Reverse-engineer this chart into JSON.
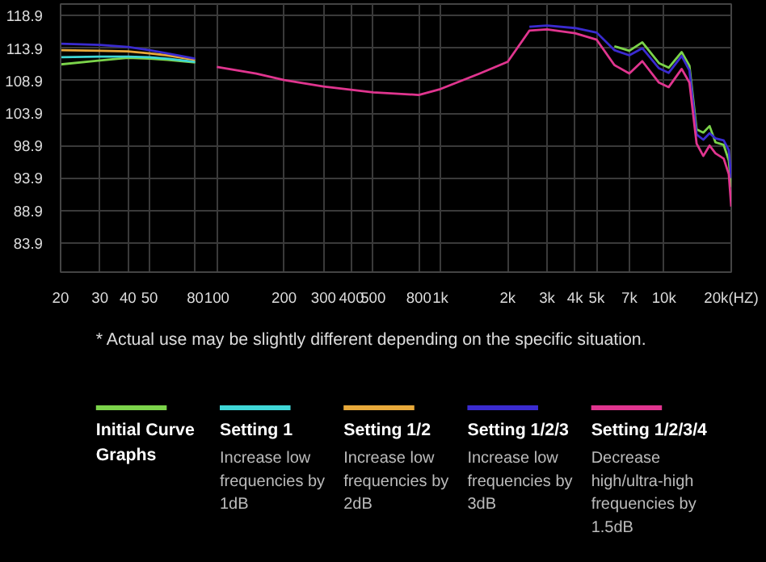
{
  "chart_data": {
    "type": "line",
    "log": "x",
    "grid": true,
    "legend": "bottom",
    "x": [
      20,
      30,
      40,
      50,
      60,
      80,
      100,
      150,
      200,
      300,
      500,
      800,
      1000,
      1500,
      2000,
      2500,
      3000,
      4000,
      5000,
      6000,
      7000,
      8000,
      9500,
      10500,
      12000,
      13000,
      14000,
      15000,
      16000,
      17000,
      18500,
      19500,
      20000
    ],
    "xlim": [
      20,
      20000
    ],
    "xticks": [
      20,
      30,
      40,
      50,
      80,
      100,
      200,
      300,
      400,
      500,
      800,
      {
        "value": 1000,
        "label": "1k"
      },
      {
        "value": 2000,
        "label": "2k"
      },
      {
        "value": 3000,
        "label": "3k"
      },
      {
        "value": 4000,
        "label": "4k"
      },
      {
        "value": 5000,
        "label": "5k"
      },
      {
        "value": 7000,
        "label": "7k"
      },
      {
        "value": 10000,
        "label": "10k"
      },
      {
        "value": 20000,
        "label": "20k(HZ)"
      }
    ],
    "ylim": [
      79.4,
      120.7
    ],
    "yticks": [
      83.9,
      88.9,
      93.9,
      98.9,
      103.9,
      108.9,
      113.9,
      118.9
    ],
    "series": [
      {
        "name": "Initial Curve Graphs",
        "color": "#7bd34a",
        "values": [
          111.4,
          112.0,
          112.4,
          112.3,
          112.1,
          111.7,
          null,
          null,
          null,
          null,
          null,
          null,
          null,
          null,
          null,
          null,
          null,
          null,
          null,
          114.2,
          113.5,
          114.8,
          111.6,
          110.9,
          113.3,
          111.2,
          101.4,
          100.9,
          101.9,
          99.4,
          99.0,
          96.6,
          92.5
        ]
      },
      {
        "name": "Setting 1",
        "color": "#3fd6d6",
        "values": [
          112.5,
          112.6,
          112.6,
          112.5,
          112.3,
          111.8,
          null,
          null,
          null,
          null,
          null,
          null,
          null,
          null,
          null,
          null,
          null,
          null,
          null,
          null,
          null,
          null,
          null,
          null,
          null,
          null,
          null,
          null,
          null,
          null,
          null,
          null,
          null
        ]
      },
      {
        "name": "Setting 1/2",
        "color": "#e8a93a",
        "values": [
          113.6,
          113.5,
          113.4,
          113.1,
          112.8,
          112.1,
          null,
          null,
          null,
          null,
          null,
          null,
          null,
          null,
          null,
          null,
          null,
          null,
          null,
          null,
          null,
          null,
          null,
          null,
          null,
          null,
          null,
          null,
          null,
          null,
          null,
          null,
          null
        ]
      },
      {
        "name": "Setting 1/2/3",
        "color": "#3a2bd0",
        "values": [
          114.6,
          114.4,
          114.1,
          113.6,
          113.1,
          112.3,
          null,
          null,
          null,
          null,
          null,
          null,
          null,
          null,
          null,
          117.2,
          117.4,
          117.0,
          116.3,
          113.6,
          112.8,
          113.9,
          110.8,
          110.1,
          112.7,
          110.5,
          100.6,
          99.8,
          100.8,
          100.0,
          99.7,
          98.2,
          93.9
        ]
      },
      {
        "name": "Setting 1/2/3/4",
        "color": "#e0358f",
        "values": [
          null,
          null,
          null,
          null,
          null,
          null,
          111.0,
          110.0,
          109.0,
          108.0,
          107.1,
          106.7,
          107.6,
          110.0,
          111.8,
          116.6,
          116.8,
          116.2,
          115.2,
          111.3,
          110.0,
          111.9,
          108.6,
          107.9,
          110.7,
          108.6,
          99.2,
          97.3,
          98.9,
          97.7,
          96.9,
          94.5,
          89.5
        ]
      }
    ],
    "annotations": [
      "* Actual use may be slightly different depending on the specific situation.",
      "Increase low frequencies by 1dB",
      "Increase low frequencies by 2dB",
      "Increase low frequencies by 3dB",
      "Decrease high/ultra-high frequencies by 1.5dB"
    ]
  }
}
